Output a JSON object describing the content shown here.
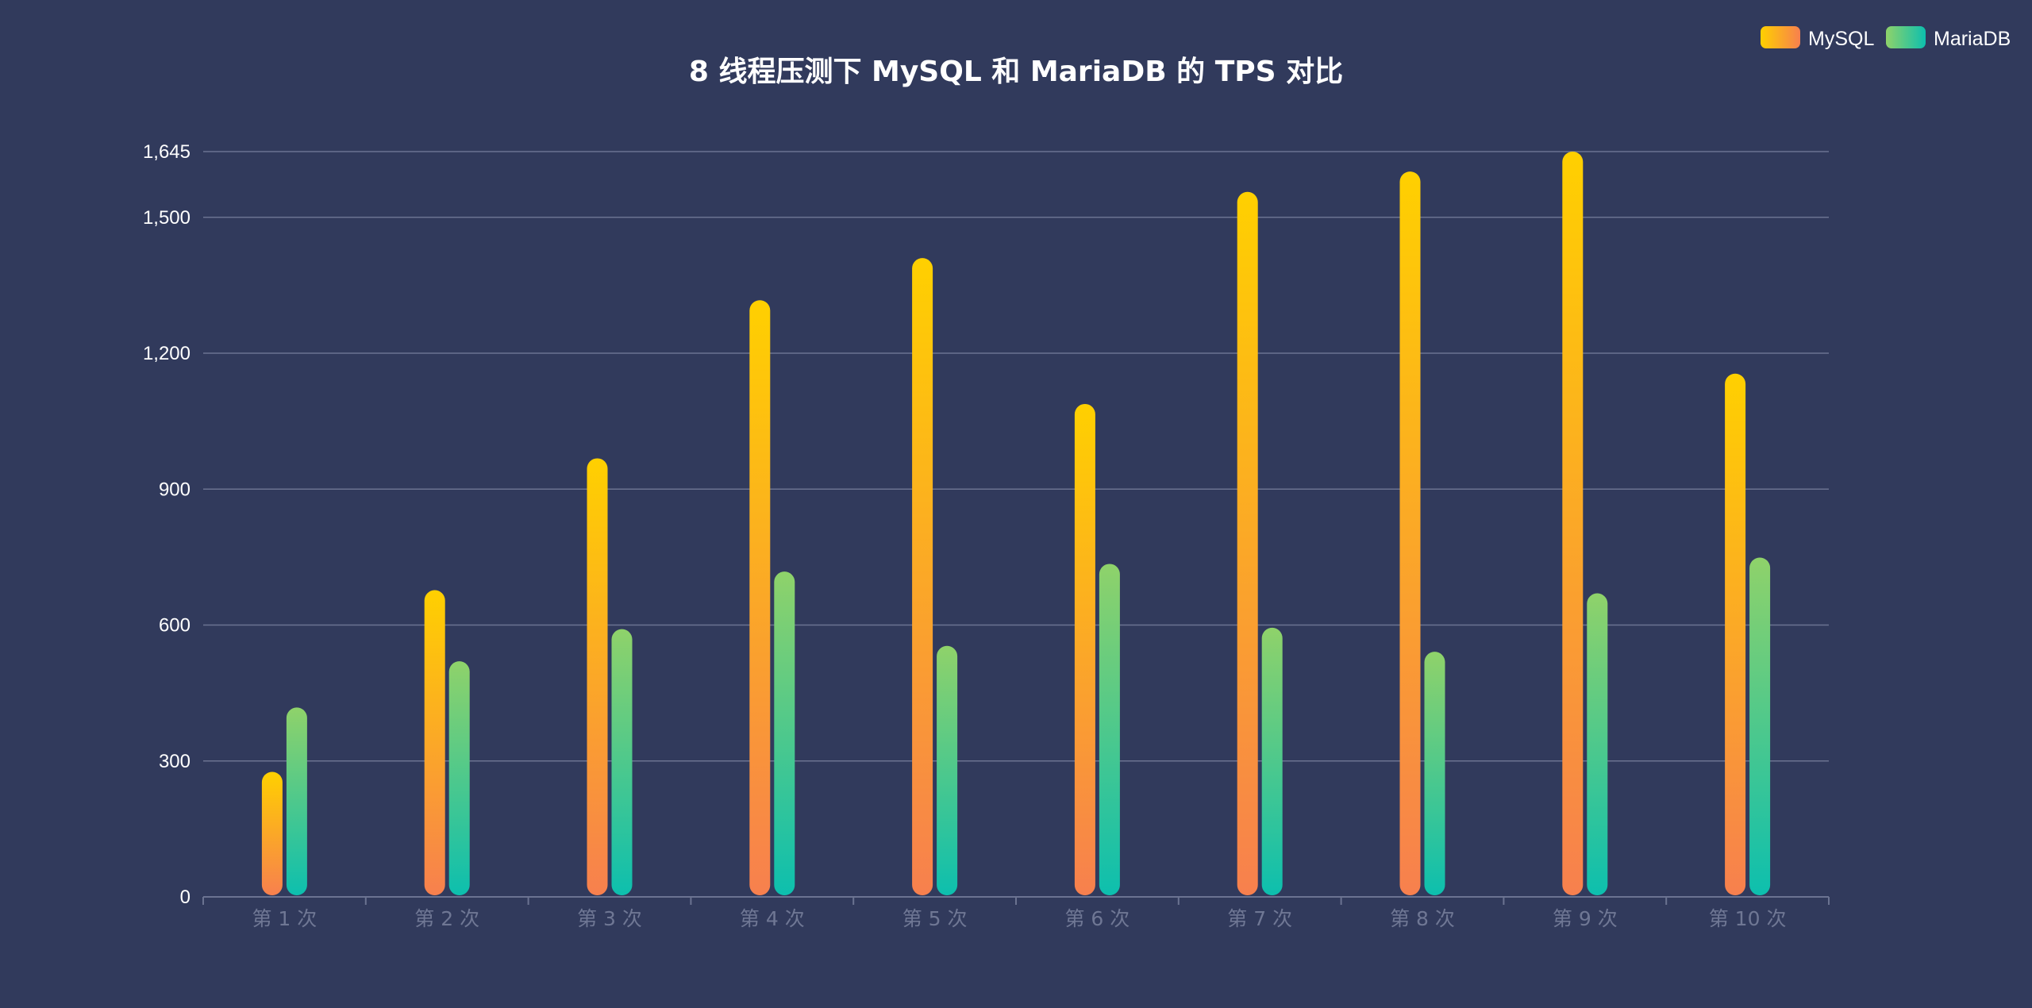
{
  "colors": {
    "background": "#313a5c",
    "grid": "#6b7391",
    "axis": "#6b7391",
    "title": "#ffffff",
    "ytick": "#ffffff",
    "xtick": "#6f7794",
    "legend_text": "#ffffff"
  },
  "chart_data": {
    "type": "bar",
    "title": "8 线程压测下 MySQL 和 MariaDB 的 TPS 对比",
    "xlabel": "",
    "ylabel": "",
    "ylim": [
      0,
      1645
    ],
    "yticks": [
      0,
      300,
      600,
      900,
      1200,
      1500,
      1645
    ],
    "ytick_labels": [
      "0",
      "300",
      "600",
      "900",
      "1,200",
      "1,500",
      "1,645"
    ],
    "grid": true,
    "legend_position": "top-right",
    "categories": [
      "第 1 次",
      "第 2 次",
      "第 3 次",
      "第 4 次",
      "第 5 次",
      "第 6 次",
      "第 7 次",
      "第 8 次",
      "第 9 次",
      "第 10 次"
    ],
    "series": [
      {
        "name": "MySQL",
        "values": [
          276,
          677,
          968,
          1317,
          1410,
          1088,
          1556,
          1601,
          1645,
          1155
        ],
        "gradient_top": "#ffd000",
        "gradient_bottom": "#f7804e"
      },
      {
        "name": "MariaDB",
        "values": [
          418,
          520,
          591,
          718,
          554,
          735,
          594,
          541,
          670,
          749
        ],
        "gradient_top": "#8fd26a",
        "gradient_bottom": "#0dbfae"
      }
    ]
  }
}
